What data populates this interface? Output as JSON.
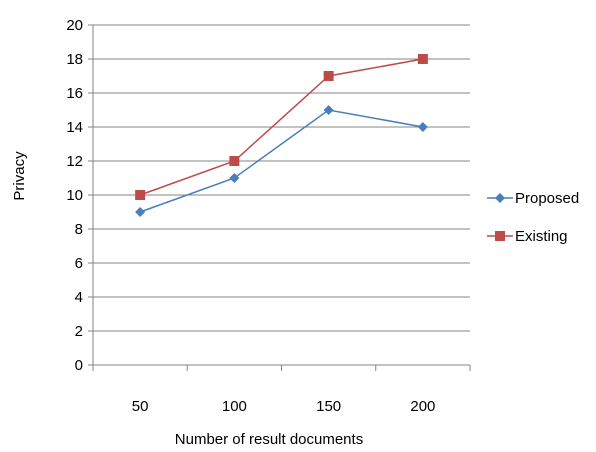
{
  "chart_data": {
    "type": "line",
    "categories": [
      "50",
      "100",
      "150",
      "200"
    ],
    "series": [
      {
        "name": "Proposed",
        "values": [
          9,
          11,
          15,
          14
        ],
        "color": "#4a7ebb",
        "marker": "diamond"
      },
      {
        "name": "Existing",
        "values": [
          10,
          12,
          17,
          18
        ],
        "color": "#be4b48",
        "marker": "square"
      }
    ],
    "xlabel": "Number of result documents",
    "ylabel": "Privacy",
    "ylim": [
      0,
      20
    ],
    "yticks": [
      "0",
      "2",
      "4",
      "6",
      "8",
      "10",
      "12",
      "14",
      "16",
      "18",
      "20"
    ],
    "grid": true,
    "legend_position": "right"
  }
}
